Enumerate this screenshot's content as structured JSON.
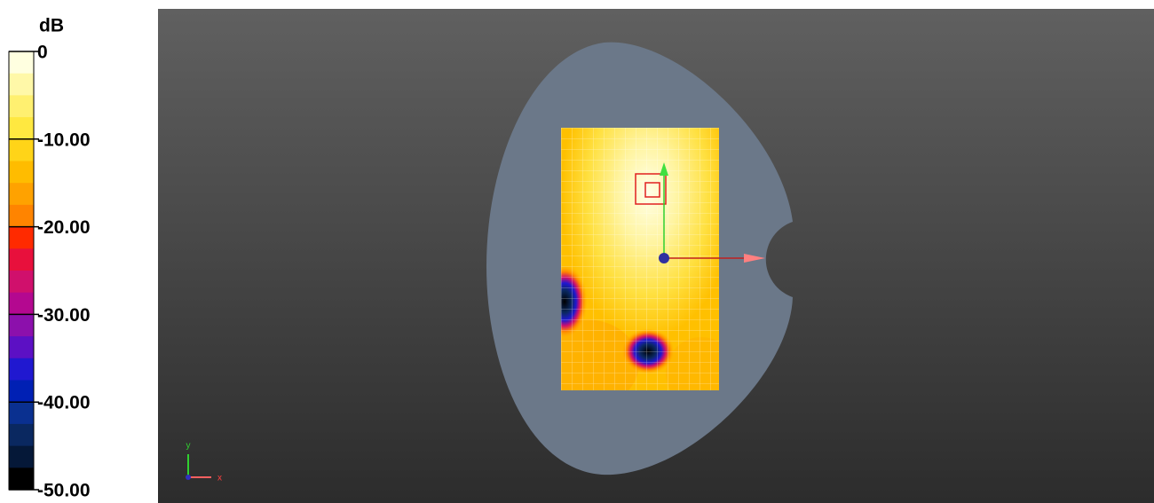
{
  "colorbar": {
    "title": "dB",
    "lim": [
      -50,
      0
    ],
    "ticks": [
      {
        "value": 0,
        "label": "0"
      },
      {
        "value": -10,
        "label": "-10.00"
      },
      {
        "value": -20,
        "label": "-20.00"
      },
      {
        "value": -30,
        "label": "-30.00"
      },
      {
        "value": -40,
        "label": "-40.00"
      },
      {
        "value": -50,
        "label": "-50.00"
      }
    ],
    "colors": [
      "#ffffe0",
      "#fff8a8",
      "#fff070",
      "#ffe840",
      "#ffd418",
      "#ffbc00",
      "#ffa200",
      "#ff8400",
      "#ff2a00",
      "#e8103c",
      "#d0106c",
      "#b40890",
      "#8c10ac",
      "#5c10c4",
      "#2018d0",
      "#0020b4",
      "#0a3090",
      "#0a2860",
      "#051838",
      "#000000"
    ]
  },
  "axes_indicator": {
    "x": "x",
    "y": "y"
  }
}
